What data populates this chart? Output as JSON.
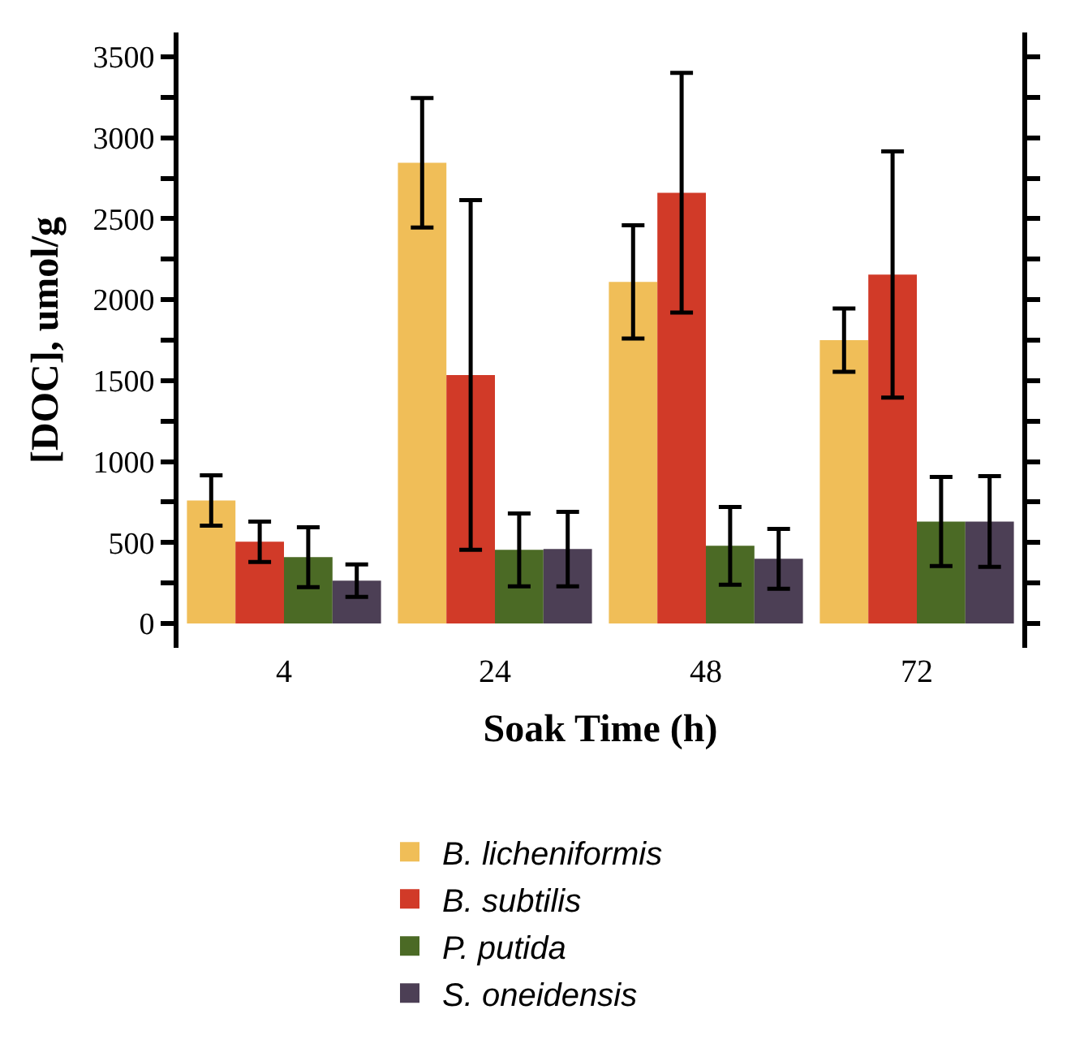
{
  "chart_data": {
    "type": "bar",
    "xlabel": "Soak Time (h)",
    "ylabel": "[DOC], umol/g",
    "categories": [
      "4",
      "24",
      "48",
      "72"
    ],
    "series": [
      {
        "name": "B. licheniformis",
        "color": "#f0be58",
        "values": [
          760,
          2845,
          2110,
          1750
        ],
        "errors": [
          155,
          400,
          350,
          195
        ]
      },
      {
        "name": "B. subtilis",
        "color": "#d13a28",
        "values": [
          505,
          1535,
          2660,
          2155
        ],
        "errors": [
          125,
          1080,
          740,
          760
        ]
      },
      {
        "name": "P. putida",
        "color": "#4b6a25",
        "values": [
          410,
          455,
          480,
          630
        ],
        "errors": [
          185,
          225,
          240,
          275
        ]
      },
      {
        "name": "S. oneidensis",
        "color": "#4c3f55",
        "values": [
          265,
          460,
          400,
          630
        ],
        "errors": [
          100,
          230,
          185,
          280
        ]
      }
    ],
    "ylim": [
      -150,
      3650
    ],
    "yticks": [
      0,
      {
        "value": 250,
        "label": null
      },
      500,
      {
        "value": 750,
        "label": null
      },
      1000,
      {
        "value": 1250,
        "label": null
      },
      1500,
      {
        "value": 1750,
        "label": null
      },
      2000,
      {
        "value": 2250,
        "label": null
      },
      2500,
      {
        "value": 2750,
        "label": null
      },
      3000,
      {
        "value": 3250,
        "label": null
      },
      3500
    ],
    "grid": false,
    "legend": "bottom"
  }
}
